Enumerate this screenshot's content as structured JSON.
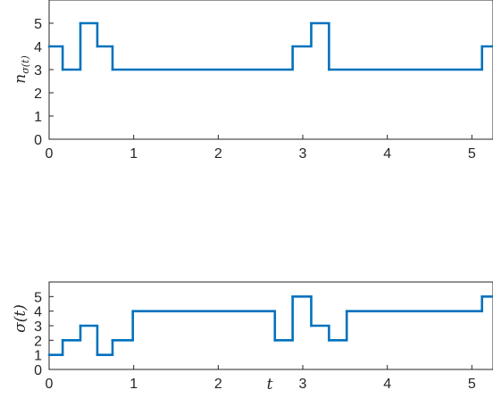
{
  "chart_data": [
    {
      "type": "line",
      "step": "post",
      "ylabel_base": "n",
      "ylabel_sub": "σ(t)",
      "xlim": [
        0,
        5.25
      ],
      "ylim": [
        0,
        6
      ],
      "xticks": [
        "0",
        "1",
        "2",
        "3",
        "4",
        "5"
      ],
      "yticks": [
        "0",
        "1",
        "2",
        "3",
        "4",
        "5"
      ],
      "line_color": "#0072BD",
      "x": [
        0,
        0.16,
        0.37,
        0.57,
        0.75,
        2.88,
        3.1,
        3.31,
        5.12,
        5.25
      ],
      "y": [
        4,
        3,
        5,
        4,
        3,
        4,
        5,
        3,
        4,
        4
      ]
    },
    {
      "type": "line",
      "step": "post",
      "ylabel": "σ(t)",
      "xlabel": "t",
      "xlim": [
        0,
        5.25
      ],
      "ylim": [
        0,
        6
      ],
      "xticks": [
        "0",
        "1",
        "2",
        "3",
        "4",
        "5"
      ],
      "yticks": [
        "0",
        "1",
        "2",
        "3",
        "4",
        "5"
      ],
      "line_color": "#0072BD",
      "x": [
        0,
        0.16,
        0.37,
        0.57,
        0.75,
        0.99,
        2.67,
        2.88,
        3.1,
        3.31,
        3.52,
        5.12,
        5.25
      ],
      "y": [
        1,
        2,
        3,
        1,
        2,
        4,
        2,
        5,
        3,
        2,
        4,
        5,
        5
      ]
    }
  ]
}
